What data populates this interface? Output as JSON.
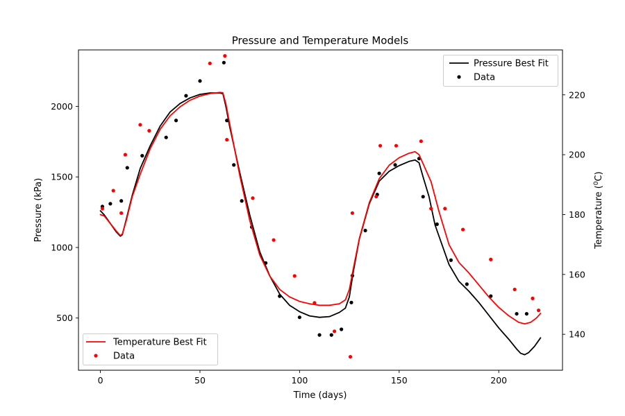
{
  "chart_data": {
    "type": "line",
    "title": "Pressure and Temperature Models",
    "xlabel": "Time (days)",
    "ylabel_left": "Pressure (kPa)",
    "ylabel_right_base": "Temperature (",
    "ylabel_right_sup": "0",
    "ylabel_right_unit": "C)",
    "xlim": [
      -11,
      232
    ],
    "ylim_left": [
      130,
      2400
    ],
    "ylim_right": [
      128,
      235
    ],
    "xticks": [
      0,
      50,
      100,
      150,
      200
    ],
    "yticks_left": [
      500,
      1000,
      1500,
      2000
    ],
    "yticks_right": [
      140,
      160,
      180,
      200,
      220
    ],
    "colors": {
      "pressure": "#000000",
      "temperature": "#ff0000"
    },
    "legend_left": {
      "placement": "upper right",
      "entries": [
        "Pressure Best Fit",
        "Data"
      ]
    },
    "legend_right": {
      "placement": "lower left",
      "entries": [
        "Temperature Best Fit",
        "Data"
      ]
    },
    "series": [
      {
        "name": "Pressure Best Fit",
        "axis": "left",
        "kind": "line",
        "color": "#000000",
        "x": [
          0,
          2,
          5,
          8,
          10,
          11,
          13,
          16,
          20,
          25,
          30,
          35,
          40,
          45,
          50,
          55,
          60,
          61.5,
          63,
          65,
          70,
          75,
          80,
          85,
          90,
          95,
          100,
          105,
          110,
          115,
          120,
          123,
          125,
          127,
          130,
          135,
          140,
          145,
          150,
          155,
          158,
          160,
          162,
          165,
          168,
          172,
          175,
          180,
          185,
          190,
          195,
          200,
          205,
          209,
          211,
          213,
          215,
          218,
          221
        ],
        "y": [
          1260,
          1230,
          1170,
          1110,
          1080,
          1090,
          1200,
          1370,
          1560,
          1720,
          1860,
          1960,
          2020,
          2060,
          2085,
          2095,
          2095,
          2090,
          2000,
          1850,
          1530,
          1230,
          970,
          800,
          670,
          590,
          545,
          515,
          505,
          510,
          540,
          570,
          650,
          830,
          1060,
          1310,
          1470,
          1540,
          1580,
          1610,
          1620,
          1600,
          1500,
          1360,
          1160,
          1000,
          880,
          760,
          690,
          610,
          520,
          430,
          350,
          280,
          250,
          240,
          255,
          300,
          360
        ]
      },
      {
        "name": "Data",
        "axis": "left",
        "kind": "scatter",
        "color": "#000000",
        "x": [
          1,
          5,
          10.5,
          13.5,
          21,
          33,
          38,
          43,
          50,
          62,
          63.5,
          67,
          71,
          76,
          83,
          90,
          100,
          110,
          116,
          121,
          126,
          126.5,
          133,
          139,
          140,
          148,
          160,
          162,
          169,
          176,
          184,
          196,
          209,
          214
        ],
        "y": [
          1290,
          1310,
          1330,
          1565,
          1650,
          1780,
          1900,
          2075,
          2180,
          2310,
          1900,
          1585,
          1330,
          1145,
          890,
          655,
          505,
          380,
          380,
          420,
          610,
          800,
          1120,
          1375,
          1525,
          1585,
          1630,
          1360,
          1165,
          910,
          740,
          655,
          530,
          530
        ]
      },
      {
        "name": "Temperature Best Fit",
        "axis": "right",
        "kind": "line",
        "color": "#ff0000",
        "x": [
          0,
          2,
          5,
          8,
          10,
          11,
          13,
          16,
          20,
          25,
          30,
          35,
          40,
          45,
          50,
          55,
          60,
          61.5,
          63,
          65,
          70,
          75,
          80,
          85,
          90,
          95,
          100,
          105,
          110,
          115,
          120,
          123,
          125,
          127,
          130,
          135,
          140,
          145,
          150,
          155,
          158,
          160,
          162,
          166,
          170,
          175,
          180,
          185,
          190,
          195,
          200,
          205,
          210,
          213,
          216,
          219,
          221
        ],
        "y": [
          180,
          179.5,
          177,
          174.5,
          173,
          173.5,
          178,
          186,
          193.5,
          202,
          208.5,
          213,
          216,
          218.2,
          219.6,
          220.4,
          220.8,
          220.7,
          217,
          210,
          193,
          178,
          166.5,
          159.5,
          155,
          152.5,
          151,
          150.2,
          149.7,
          149.7,
          150.2,
          151.5,
          155,
          162,
          172,
          184,
          192,
          196.5,
          199,
          200.5,
          201,
          200,
          197,
          191,
          181,
          170,
          164,
          160.5,
          156.5,
          152.5,
          149,
          146.2,
          144,
          143.5,
          144,
          145.5,
          147
        ]
      },
      {
        "name": "Data",
        "axis": "right",
        "kind": "scatter",
        "color": "#ff0000",
        "x": [
          1,
          6.5,
          10.5,
          12.5,
          20,
          24.5,
          55,
          62.5,
          63.5,
          76.5,
          87,
          97.5,
          107.5,
          117.5,
          125.5,
          126.5,
          138.5,
          140.5,
          148.5,
          161,
          166,
          173,
          182,
          196,
          208,
          217,
          220
        ],
        "y": [
          182,
          188,
          180.5,
          200,
          210,
          208,
          230.5,
          233,
          205,
          185.5,
          171.5,
          159.5,
          150.5,
          141,
          132.5,
          180.5,
          186,
          203,
          203,
          204.5,
          182,
          182,
          175,
          165,
          155,
          152,
          148
        ]
      }
    ]
  }
}
